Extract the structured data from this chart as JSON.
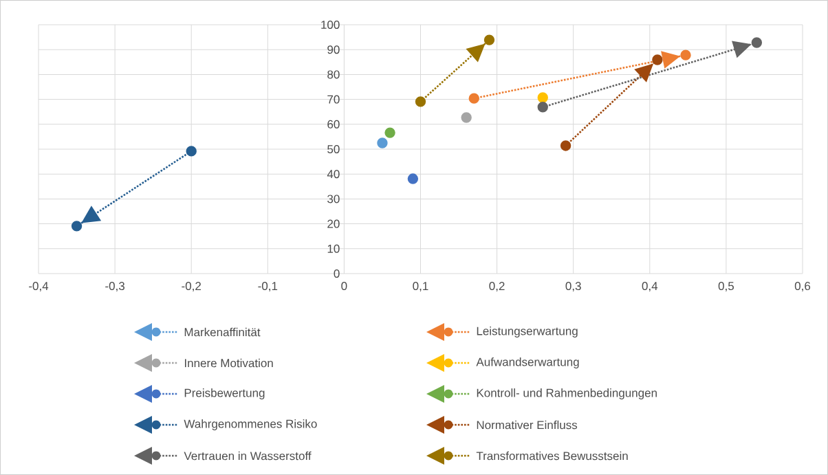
{
  "chart_data": {
    "type": "line",
    "xlim": [
      -0.4,
      0.6
    ],
    "ylim": [
      0,
      100
    ],
    "xticks": [
      {
        "value": -0.4,
        "label": "-0,4"
      },
      {
        "value": -0.3,
        "label": "-0,3"
      },
      {
        "value": -0.2,
        "label": "-0,2"
      },
      {
        "value": -0.1,
        "label": "-0,1"
      },
      {
        "value": 0,
        "label": "0"
      },
      {
        "value": 0.1,
        "label": "0,1"
      },
      {
        "value": 0.2,
        "label": "0,2"
      },
      {
        "value": 0.3,
        "label": "0,3"
      },
      {
        "value": 0.4,
        "label": "0,4"
      },
      {
        "value": 0.5,
        "label": "0,5"
      },
      {
        "value": 0.6,
        "label": "0,6"
      }
    ],
    "yticks": [
      0,
      10,
      20,
      30,
      40,
      50,
      60,
      70,
      80,
      90,
      100
    ],
    "grid": true,
    "legend": "bottom",
    "marker": "circle",
    "line_style": "dotted",
    "series": [
      {
        "name": "Markenaffinität",
        "type": "scatter",
        "color": "#5b9bd5",
        "x": [
          0.05
        ],
        "values": [
          52.5
        ]
      },
      {
        "name": "Leistungserwartung",
        "color": "#ed7d31",
        "x": [
          0.17,
          0.447
        ],
        "values": [
          70.4,
          87.8
        ]
      },
      {
        "name": "Innere Motivation",
        "type": "scatter",
        "color": "#a5a5a5",
        "x": [
          0.16
        ],
        "values": [
          62.7
        ]
      },
      {
        "name": "Aufwandserwartung",
        "type": "scatter",
        "color": "#ffc000",
        "x": [
          0.26
        ],
        "values": [
          70.7
        ]
      },
      {
        "name": "Preisbewertung",
        "type": "scatter",
        "color": "#4472c4",
        "x": [
          0.09
        ],
        "values": [
          38.1
        ]
      },
      {
        "name": "Kontroll- und Rahmenbedingungen",
        "type": "scatter",
        "color": "#70ad47",
        "x": [
          0.06
        ],
        "values": [
          56.6
        ]
      },
      {
        "name": "Wahrgenommenes Risiko",
        "color": "#255e91",
        "x": [
          -0.2,
          -0.35
        ],
        "values": [
          49.2,
          19.1
        ]
      },
      {
        "name": "Normativer Einfluss",
        "color": "#9e480e",
        "x": [
          0.29,
          0.41
        ],
        "values": [
          51.4,
          85.9
        ]
      },
      {
        "name": "Vertrauen in Wasserstoff",
        "color": "#636363",
        "x": [
          0.26,
          0.54
        ],
        "values": [
          66.9,
          92.8
        ]
      },
      {
        "name": "Transformatives Bewusstsein",
        "color": "#997300",
        "x": [
          0.1,
          0.19
        ],
        "values": [
          69.1,
          93.9
        ]
      }
    ]
  }
}
